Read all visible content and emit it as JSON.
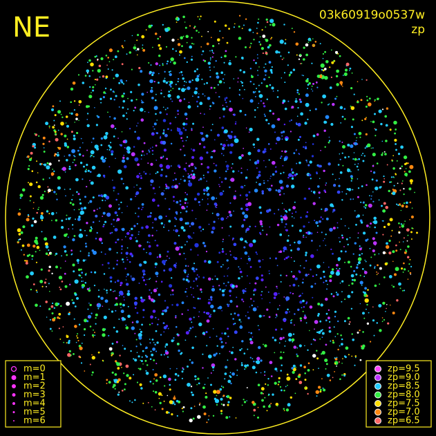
{
  "header": {
    "site": "NE",
    "frame": "03k60919o0537w",
    "band": "zp"
  },
  "magnitude_legend": [
    "m=0",
    "m=1",
    "m=2",
    "m=3",
    "m=4",
    "m=5",
    "m=6"
  ],
  "magnitude_color": "#ff33ff",
  "zp_legend": [
    {
      "label": "zp=9.5",
      "color": "#ff44ff"
    },
    {
      "label": "zp=9.0",
      "color": "#bb33ff"
    },
    {
      "label": "zp=8.5",
      "color": "#22ccff"
    },
    {
      "label": "zp=8.0",
      "color": "#33ee44"
    },
    {
      "label": "zp=7.5",
      "color": "#ffdd00"
    },
    {
      "label": "zp=7.0",
      "color": "#ff8811"
    },
    {
      "label": "zp=6.5",
      "color": "#ff6666"
    }
  ],
  "frame_color": "#ffee22"
}
